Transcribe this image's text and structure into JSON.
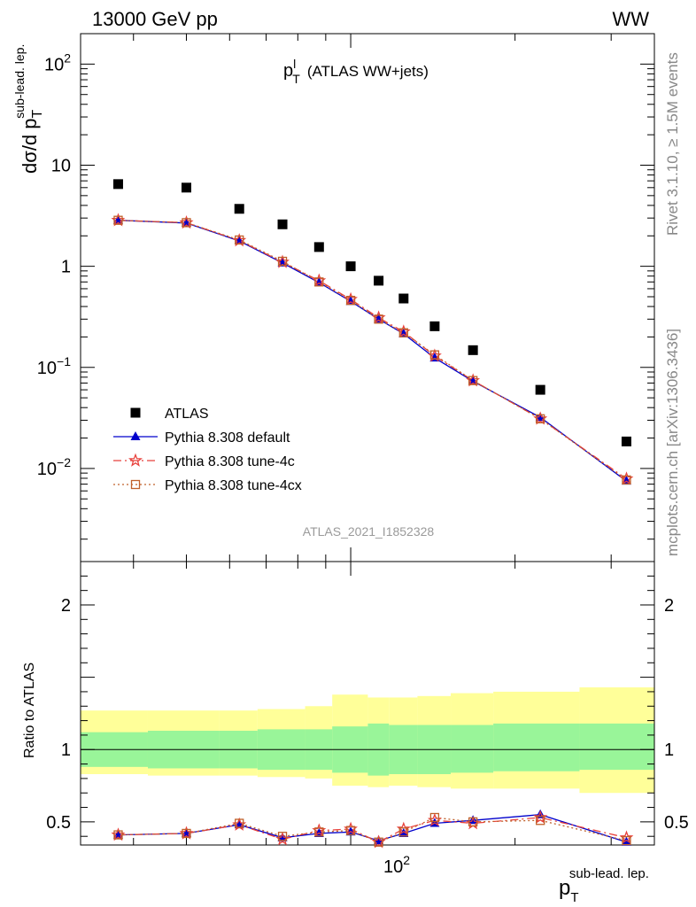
{
  "header": {
    "left": "13000 GeV pp",
    "right": "WW"
  },
  "side_labels": {
    "rivet": "Rivet 3.1.10, ≥ 1.5M events",
    "mcplots": "mcplots.cern.ch [arXiv:1306.3436]"
  },
  "analysis_id": "ATLAS_2021_I1852328",
  "colors": {
    "data": "#000000",
    "default": "#0000cc",
    "tune4c": "#e8413c",
    "tune4cx": "#c0602a",
    "band_inner": "#99f599",
    "band_outer": "#ffff99"
  },
  "chart_data": [
    {
      "type": "scatter",
      "panel": "main",
      "title_main": "p",
      "title_sup": "l",
      "title_sub": "T",
      "title_rest": "(ATLAS WW+jets)",
      "ylabel_main": "dσ/d p",
      "ylabel_sub": "T",
      "ylabel_sup": "sub-lead. lep.",
      "x_scale": "log",
      "y_scale": "log",
      "xlim": [
        32,
        360
      ],
      "ylim": [
        0.0012,
        200
      ],
      "y_ticks": [
        {
          "value": 100,
          "base": "10",
          "exp": "2"
        },
        {
          "value": 10,
          "base": "10",
          "exp": ""
        },
        {
          "value": 1,
          "base": "1",
          "exp": ""
        },
        {
          "value": 0.1,
          "base": "10",
          "exp": "−1"
        },
        {
          "value": 0.01,
          "base": "10",
          "exp": "−2"
        }
      ],
      "x": [
        37.5,
        50,
        62.5,
        75,
        87.5,
        100,
        112.5,
        125,
        142.5,
        167.5,
        222.5,
        320
      ],
      "x_edges": [
        32,
        42.5,
        57.5,
        67.5,
        82.5,
        92.5,
        107.5,
        117.5,
        132.5,
        152.5,
        182.5,
        262.5,
        360
      ],
      "series": [
        {
          "name": "ATLAS",
          "key": "data",
          "marker": "square",
          "values": [
            6.5,
            6.0,
            3.7,
            2.6,
            1.55,
            1.0,
            0.72,
            0.48,
            0.255,
            0.148,
            0.06,
            0.0185
          ]
        },
        {
          "name": "Pythia 8.308 default",
          "key": "default",
          "marker": "triangle",
          "dash": "",
          "values": [
            2.85,
            2.68,
            1.78,
            1.08,
            0.69,
            0.45,
            0.3,
            0.215,
            0.124,
            0.073,
            0.032,
            0.0075
          ]
        },
        {
          "name": "Pythia 8.308 tune-4c",
          "key": "tune4c",
          "marker": "star",
          "dash": "9,4,2,4",
          "values": [
            2.85,
            2.7,
            1.8,
            1.1,
            0.72,
            0.47,
            0.31,
            0.225,
            0.13,
            0.074,
            0.031,
            0.0079
          ]
        },
        {
          "name": "Pythia 8.308 tune-4cx",
          "key": "tune4cx",
          "marker": "open-square",
          "dash": "2,3",
          "values": [
            2.85,
            2.7,
            1.82,
            1.12,
            0.7,
            0.46,
            0.3,
            0.22,
            0.133,
            0.074,
            0.031,
            0.0077
          ]
        }
      ]
    },
    {
      "type": "line",
      "panel": "ratio",
      "ylabel": "Ratio to ATLAS",
      "xlabel_main": "p",
      "xlabel_sub": "T",
      "xlabel_sup": "sub-lead. lep.",
      "x_scale": "log",
      "xlim": [
        32,
        360
      ],
      "ylim": [
        0.34,
        2.3
      ],
      "y_ticks": [
        0.5,
        1,
        2
      ],
      "x_tick_label": {
        "value": 100,
        "base": "10",
        "exp": "2"
      },
      "band_inner": [
        [
          0.88,
          1.12
        ],
        [
          0.87,
          1.13
        ],
        [
          0.87,
          1.13
        ],
        [
          0.86,
          1.14
        ],
        [
          0.86,
          1.14
        ],
        [
          0.84,
          1.16
        ],
        [
          0.82,
          1.18
        ],
        [
          0.83,
          1.17
        ],
        [
          0.83,
          1.17
        ],
        [
          0.84,
          1.17
        ],
        [
          0.85,
          1.18
        ],
        [
          0.86,
          1.18
        ]
      ],
      "band_outer": [
        [
          0.83,
          1.27
        ],
        [
          0.82,
          1.27
        ],
        [
          0.82,
          1.27
        ],
        [
          0.81,
          1.28
        ],
        [
          0.8,
          1.3
        ],
        [
          0.75,
          1.38
        ],
        [
          0.74,
          1.36
        ],
        [
          0.75,
          1.36
        ],
        [
          0.74,
          1.37
        ],
        [
          0.73,
          1.39
        ],
        [
          0.73,
          1.4
        ],
        [
          0.7,
          1.43
        ]
      ],
      "series": [
        {
          "name": "Pythia 8.308 default",
          "key": "default",
          "marker": "triangle",
          "dash": "",
          "values": [
            0.41,
            0.42,
            0.48,
            0.39,
            0.42,
            0.43,
            0.37,
            0.42,
            0.49,
            0.51,
            0.55,
            0.36
          ]
        },
        {
          "name": "Pythia 8.308 tune-4c",
          "key": "tune4c",
          "marker": "star",
          "dash": "9,4,2,4",
          "values": [
            0.41,
            0.42,
            0.48,
            0.38,
            0.44,
            0.45,
            0.36,
            0.45,
            0.51,
            0.49,
            0.53,
            0.39
          ]
        },
        {
          "name": "Pythia 8.308 tune-4cx",
          "key": "tune4cx",
          "marker": "open-square",
          "dash": "2,3",
          "values": [
            0.41,
            0.42,
            0.49,
            0.4,
            0.43,
            0.44,
            0.36,
            0.43,
            0.53,
            0.5,
            0.51,
            0.37
          ]
        }
      ]
    }
  ]
}
